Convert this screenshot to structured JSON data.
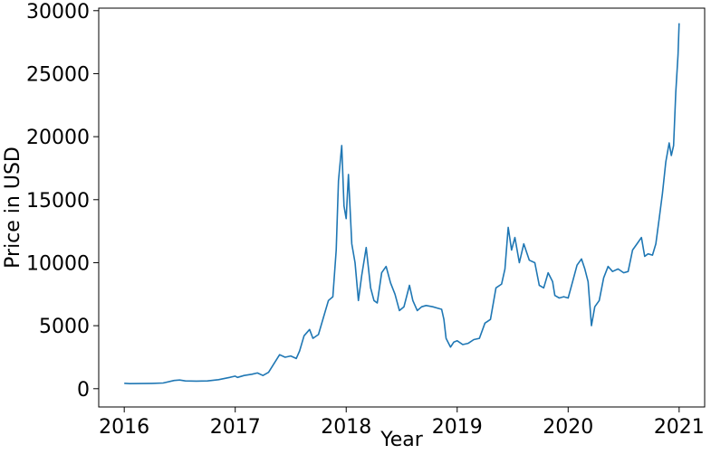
{
  "chart_data": {
    "type": "line",
    "title": "",
    "xlabel": "Year",
    "ylabel": "Price in USD",
    "xlim": [
      2015.77,
      2021.23
    ],
    "ylim": [
      -1450,
      30200
    ],
    "x_ticks": [
      2016,
      2017,
      2018,
      2019,
      2020,
      2021
    ],
    "x_tick_labels": [
      "2016",
      "2017",
      "2018",
      "2019",
      "2020",
      "2021"
    ],
    "y_ticks": [
      0,
      5000,
      10000,
      15000,
      20000,
      25000,
      30000
    ],
    "y_tick_labels": [
      "0",
      "5000",
      "10000",
      "15000",
      "20000",
      "25000",
      "30000"
    ],
    "grid": false,
    "legend": false,
    "series": [
      {
        "color": "#1f77b4",
        "points": [
          [
            2016.0,
            430
          ],
          [
            2016.05,
            400
          ],
          [
            2016.15,
            410
          ],
          [
            2016.25,
            420
          ],
          [
            2016.35,
            450
          ],
          [
            2016.45,
            650
          ],
          [
            2016.5,
            690
          ],
          [
            2016.55,
            620
          ],
          [
            2016.65,
            600
          ],
          [
            2016.75,
            620
          ],
          [
            2016.85,
            720
          ],
          [
            2016.95,
            900
          ],
          [
            2017.0,
            1000
          ],
          [
            2017.02,
            900
          ],
          [
            2017.08,
            1050
          ],
          [
            2017.15,
            1150
          ],
          [
            2017.2,
            1250
          ],
          [
            2017.25,
            1050
          ],
          [
            2017.3,
            1300
          ],
          [
            2017.35,
            2000
          ],
          [
            2017.4,
            2700
          ],
          [
            2017.45,
            2500
          ],
          [
            2017.5,
            2600
          ],
          [
            2017.55,
            2400
          ],
          [
            2017.58,
            3000
          ],
          [
            2017.62,
            4200
          ],
          [
            2017.67,
            4700
          ],
          [
            2017.7,
            4000
          ],
          [
            2017.75,
            4300
          ],
          [
            2017.8,
            5800
          ],
          [
            2017.84,
            7000
          ],
          [
            2017.88,
            7300
          ],
          [
            2017.91,
            11000
          ],
          [
            2017.93,
            16500
          ],
          [
            2017.96,
            19300
          ],
          [
            2017.98,
            14500
          ],
          [
            2018.0,
            13500
          ],
          [
            2018.02,
            17000
          ],
          [
            2018.05,
            11500
          ],
          [
            2018.08,
            10000
          ],
          [
            2018.11,
            7000
          ],
          [
            2018.14,
            9000
          ],
          [
            2018.18,
            11200
          ],
          [
            2018.22,
            8000
          ],
          [
            2018.25,
            7000
          ],
          [
            2018.28,
            6800
          ],
          [
            2018.32,
            9200
          ],
          [
            2018.36,
            9700
          ],
          [
            2018.4,
            8400
          ],
          [
            2018.44,
            7500
          ],
          [
            2018.48,
            6200
          ],
          [
            2018.52,
            6500
          ],
          [
            2018.57,
            8200
          ],
          [
            2018.6,
            7000
          ],
          [
            2018.64,
            6200
          ],
          [
            2018.68,
            6500
          ],
          [
            2018.72,
            6600
          ],
          [
            2018.78,
            6500
          ],
          [
            2018.82,
            6400
          ],
          [
            2018.86,
            6300
          ],
          [
            2018.88,
            5500
          ],
          [
            2018.9,
            4000
          ],
          [
            2018.94,
            3300
          ],
          [
            2018.97,
            3700
          ],
          [
            2019.0,
            3800
          ],
          [
            2019.05,
            3500
          ],
          [
            2019.1,
            3600
          ],
          [
            2019.15,
            3900
          ],
          [
            2019.2,
            4000
          ],
          [
            2019.25,
            5200
          ],
          [
            2019.3,
            5500
          ],
          [
            2019.35,
            8000
          ],
          [
            2019.4,
            8300
          ],
          [
            2019.43,
            9500
          ],
          [
            2019.46,
            12800
          ],
          [
            2019.49,
            11000
          ],
          [
            2019.52,
            12000
          ],
          [
            2019.56,
            10000
          ],
          [
            2019.6,
            11500
          ],
          [
            2019.65,
            10200
          ],
          [
            2019.7,
            10000
          ],
          [
            2019.74,
            8200
          ],
          [
            2019.78,
            8000
          ],
          [
            2019.82,
            9200
          ],
          [
            2019.86,
            8500
          ],
          [
            2019.88,
            7400
          ],
          [
            2019.92,
            7200
          ],
          [
            2019.96,
            7300
          ],
          [
            2020.0,
            7200
          ],
          [
            2020.04,
            8500
          ],
          [
            2020.08,
            9800
          ],
          [
            2020.12,
            10300
          ],
          [
            2020.15,
            9500
          ],
          [
            2020.18,
            8500
          ],
          [
            2020.21,
            5000
          ],
          [
            2020.24,
            6500
          ],
          [
            2020.28,
            7000
          ],
          [
            2020.32,
            8800
          ],
          [
            2020.36,
            9700
          ],
          [
            2020.4,
            9300
          ],
          [
            2020.45,
            9500
          ],
          [
            2020.5,
            9200
          ],
          [
            2020.54,
            9300
          ],
          [
            2020.58,
            11000
          ],
          [
            2020.62,
            11500
          ],
          [
            2020.66,
            12000
          ],
          [
            2020.69,
            10500
          ],
          [
            2020.72,
            10700
          ],
          [
            2020.76,
            10600
          ],
          [
            2020.79,
            11500
          ],
          [
            2020.82,
            13500
          ],
          [
            2020.85,
            15500
          ],
          [
            2020.88,
            18000
          ],
          [
            2020.91,
            19500
          ],
          [
            2020.93,
            18500
          ],
          [
            2020.95,
            19300
          ],
          [
            2020.97,
            23500
          ],
          [
            2020.99,
            26500
          ],
          [
            2021.0,
            29000
          ]
        ]
      }
    ]
  }
}
